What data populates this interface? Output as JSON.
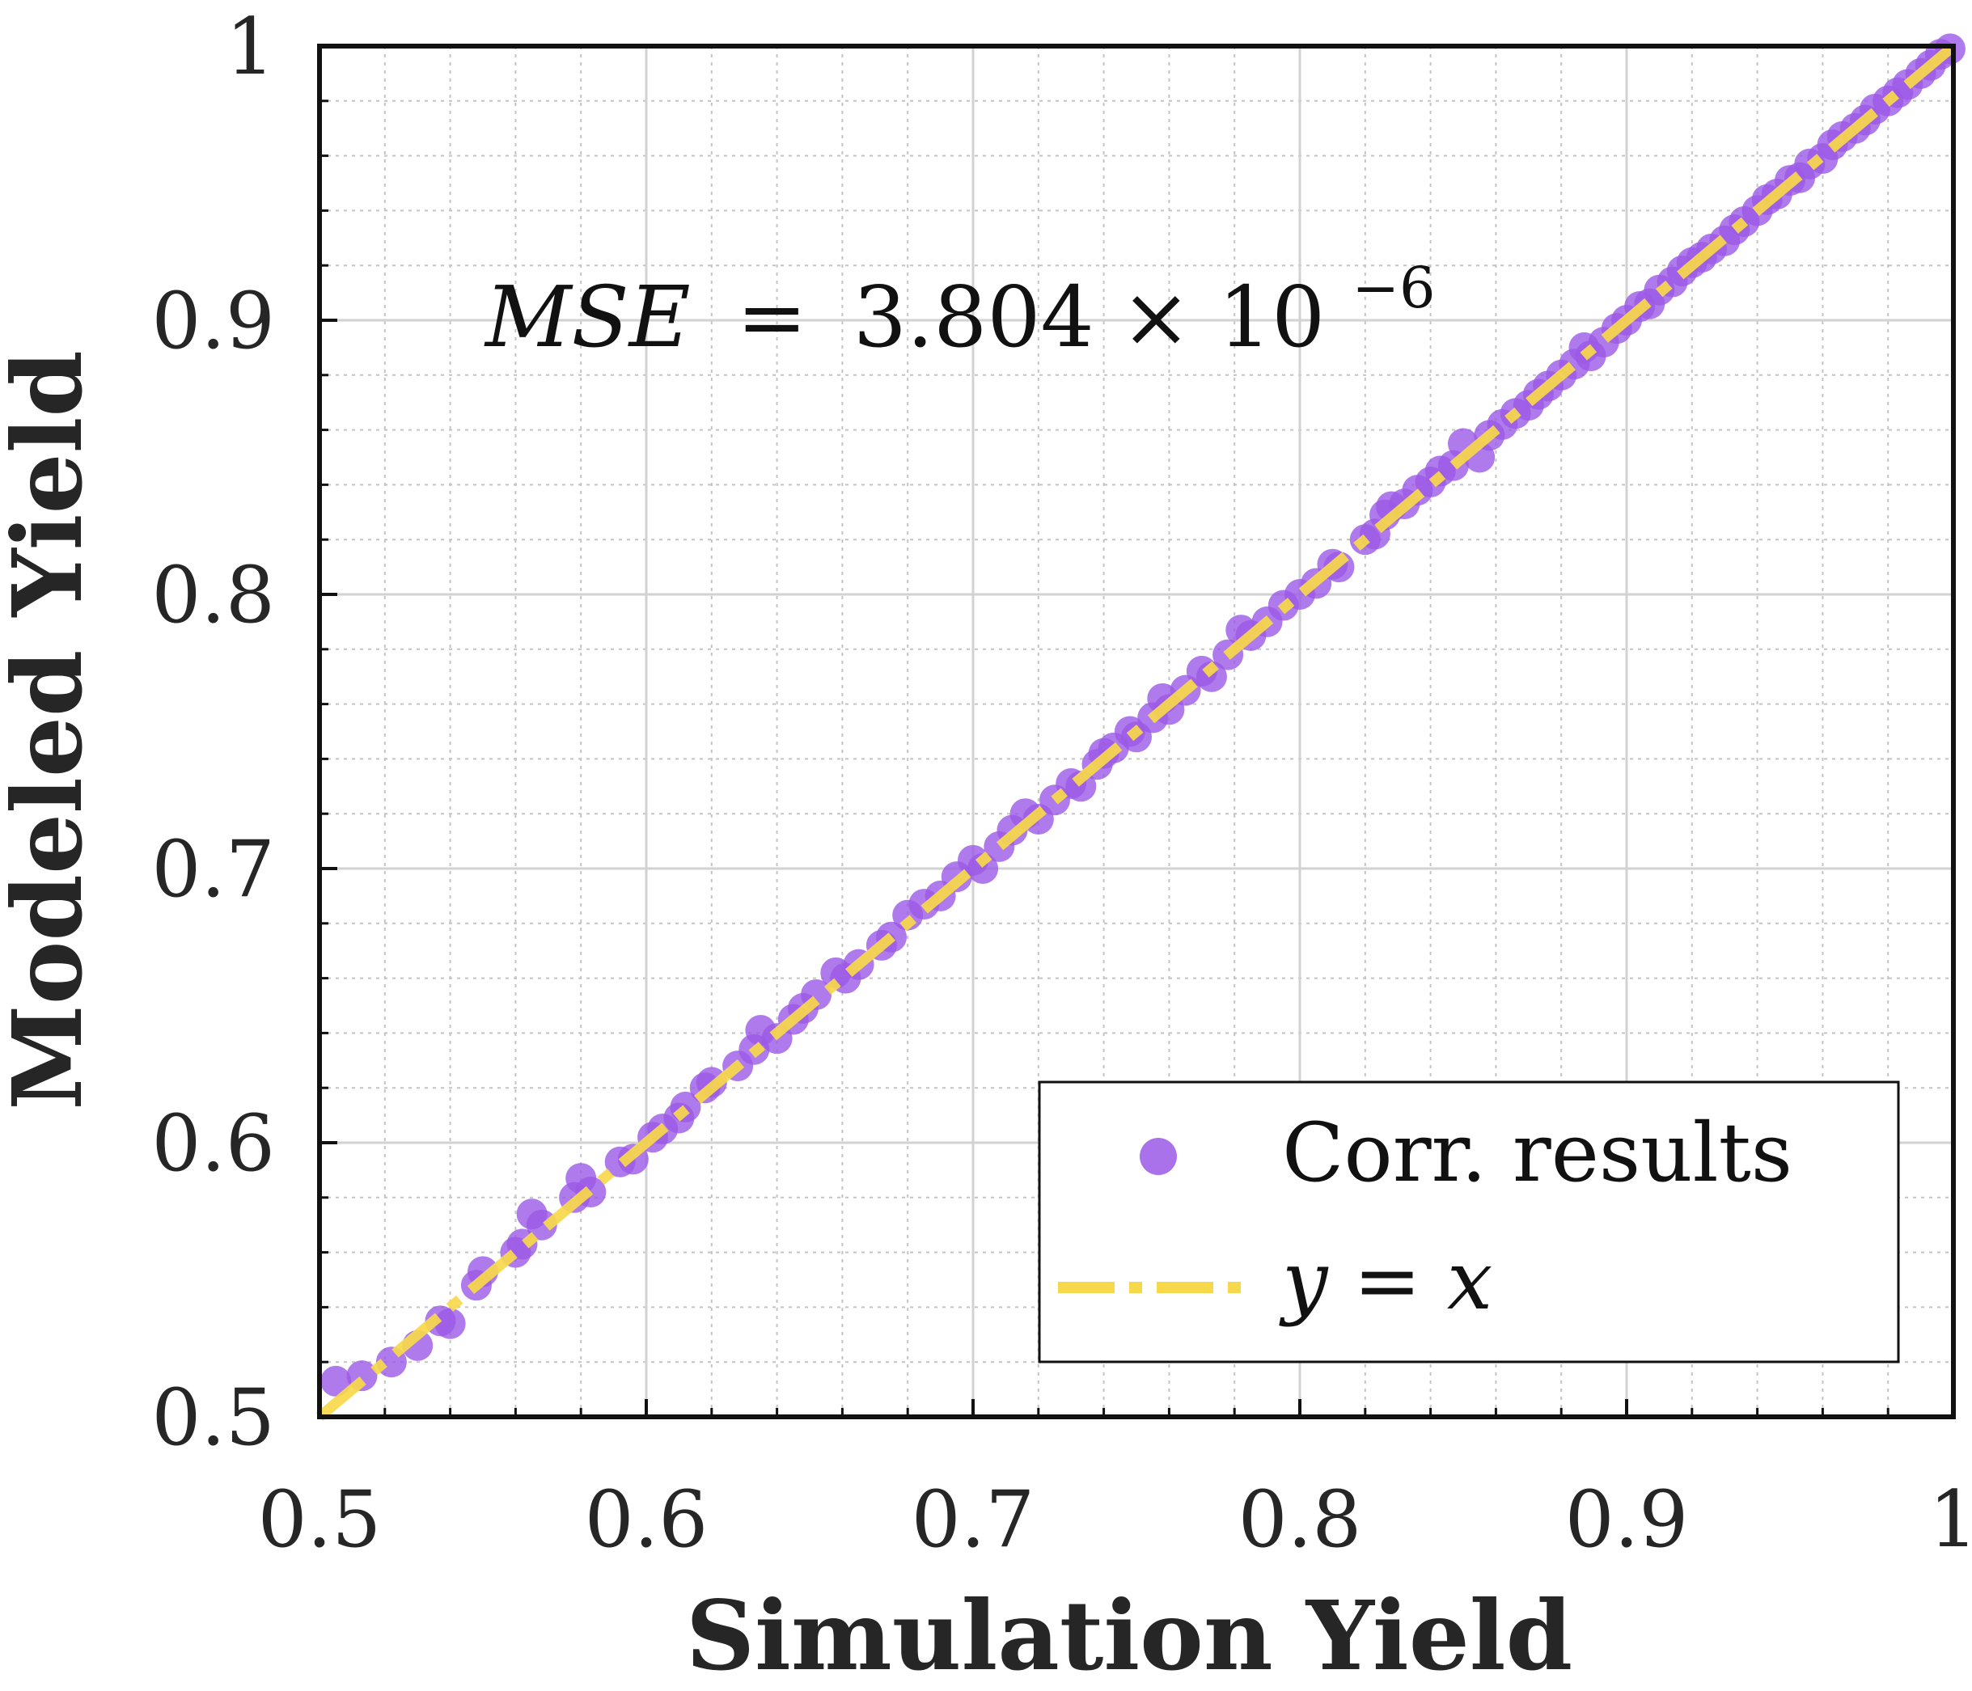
{
  "chart_data": {
    "type": "scatter",
    "title": "",
    "xlabel": "Simulation Yield",
    "ylabel": "Modeled Yield",
    "xlim": [
      0.5,
      1
    ],
    "ylim": [
      0.5,
      1
    ],
    "xticks": [
      "0.5",
      "0.6",
      "0.7",
      "0.8",
      "0.9",
      "1"
    ],
    "yticks": [
      "0.5",
      "0.6",
      "0.7",
      "0.8",
      "0.9",
      "1"
    ],
    "grid": true,
    "annotation": {
      "mse_lhs": "MSE",
      "mse_eq": "=",
      "mse_value": "3.804 × 10",
      "mse_exp": "−6"
    },
    "legend": {
      "position": "bottom-right",
      "entries": [
        {
          "label": "Corr. results",
          "marker": "circle",
          "color": "#9b59e6"
        },
        {
          "label_y": "y",
          "label_eq": " = ",
          "label_x": "x",
          "marker": "dash-dot",
          "color": "#f7d84a"
        }
      ]
    },
    "series": [
      {
        "name": "Corr. results",
        "kind": "scatter",
        "color": "#9b59e6",
        "points": [
          [
            0.505,
            0.513
          ],
          [
            0.513,
            0.515
          ],
          [
            0.522,
            0.52
          ],
          [
            0.53,
            0.526
          ],
          [
            0.537,
            0.535
          ],
          [
            0.54,
            0.534
          ],
          [
            0.548,
            0.548
          ],
          [
            0.55,
            0.553
          ],
          [
            0.56,
            0.56
          ],
          [
            0.562,
            0.563
          ],
          [
            0.565,
            0.574
          ],
          [
            0.568,
            0.57
          ],
          [
            0.578,
            0.58
          ],
          [
            0.58,
            0.587
          ],
          [
            0.583,
            0.582
          ],
          [
            0.592,
            0.593
          ],
          [
            0.596,
            0.594
          ],
          [
            0.602,
            0.602
          ],
          [
            0.605,
            0.605
          ],
          [
            0.61,
            0.609
          ],
          [
            0.612,
            0.613
          ],
          [
            0.618,
            0.62
          ],
          [
            0.62,
            0.622
          ],
          [
            0.628,
            0.628
          ],
          [
            0.633,
            0.634
          ],
          [
            0.635,
            0.641
          ],
          [
            0.64,
            0.638
          ],
          [
            0.645,
            0.645
          ],
          [
            0.648,
            0.649
          ],
          [
            0.652,
            0.654
          ],
          [
            0.658,
            0.662
          ],
          [
            0.661,
            0.66
          ],
          [
            0.665,
            0.665
          ],
          [
            0.672,
            0.672
          ],
          [
            0.675,
            0.675
          ],
          [
            0.68,
            0.683
          ],
          [
            0.685,
            0.687
          ],
          [
            0.69,
            0.69
          ],
          [
            0.695,
            0.697
          ],
          [
            0.7,
            0.703
          ],
          [
            0.703,
            0.7
          ],
          [
            0.708,
            0.708
          ],
          [
            0.712,
            0.714
          ],
          [
            0.716,
            0.72
          ],
          [
            0.72,
            0.718
          ],
          [
            0.725,
            0.725
          ],
          [
            0.73,
            0.731
          ],
          [
            0.733,
            0.73
          ],
          [
            0.738,
            0.738
          ],
          [
            0.74,
            0.742
          ],
          [
            0.743,
            0.744
          ],
          [
            0.748,
            0.75
          ],
          [
            0.75,
            0.748
          ],
          [
            0.755,
            0.755
          ],
          [
            0.758,
            0.762
          ],
          [
            0.76,
            0.758
          ],
          [
            0.765,
            0.765
          ],
          [
            0.77,
            0.772
          ],
          [
            0.773,
            0.77
          ],
          [
            0.778,
            0.778
          ],
          [
            0.782,
            0.787
          ],
          [
            0.785,
            0.785
          ],
          [
            0.79,
            0.79
          ],
          [
            0.795,
            0.796
          ],
          [
            0.8,
            0.8
          ],
          [
            0.805,
            0.804
          ],
          [
            0.81,
            0.811
          ],
          [
            0.812,
            0.81
          ],
          [
            0.82,
            0.82
          ],
          [
            0.823,
            0.822
          ],
          [
            0.826,
            0.829
          ],
          [
            0.828,
            0.832
          ],
          [
            0.832,
            0.833
          ],
          [
            0.836,
            0.838
          ],
          [
            0.84,
            0.841
          ],
          [
            0.843,
            0.845
          ],
          [
            0.847,
            0.847
          ],
          [
            0.85,
            0.855
          ],
          [
            0.855,
            0.85
          ],
          [
            0.858,
            0.858
          ],
          [
            0.862,
            0.862
          ],
          [
            0.866,
            0.866
          ],
          [
            0.87,
            0.869
          ],
          [
            0.873,
            0.873
          ],
          [
            0.876,
            0.876
          ],
          [
            0.88,
            0.88
          ],
          [
            0.884,
            0.884
          ],
          [
            0.887,
            0.89
          ],
          [
            0.889,
            0.887
          ],
          [
            0.893,
            0.892
          ],
          [
            0.897,
            0.897
          ],
          [
            0.9,
            0.9
          ],
          [
            0.904,
            0.905
          ],
          [
            0.907,
            0.906
          ],
          [
            0.91,
            0.911
          ],
          [
            0.914,
            0.914
          ],
          [
            0.917,
            0.918
          ],
          [
            0.92,
            0.921
          ],
          [
            0.923,
            0.923
          ],
          [
            0.926,
            0.926
          ],
          [
            0.93,
            0.929
          ],
          [
            0.933,
            0.933
          ],
          [
            0.936,
            0.936
          ],
          [
            0.94,
            0.94
          ],
          [
            0.943,
            0.944
          ],
          [
            0.946,
            0.946
          ],
          [
            0.95,
            0.951
          ],
          [
            0.953,
            0.952
          ],
          [
            0.956,
            0.957
          ],
          [
            0.96,
            0.959
          ],
          [
            0.963,
            0.964
          ],
          [
            0.966,
            0.967
          ],
          [
            0.97,
            0.97
          ],
          [
            0.973,
            0.973
          ],
          [
            0.976,
            0.977
          ],
          [
            0.98,
            0.98
          ],
          [
            0.983,
            0.983
          ],
          [
            0.986,
            0.986
          ],
          [
            0.99,
            0.99
          ],
          [
            0.993,
            0.993
          ],
          [
            0.996,
            0.997
          ],
          [
            0.999,
            0.999
          ]
        ]
      },
      {
        "name": "y = x",
        "kind": "line",
        "style": "dash-dot",
        "color": "#f7d84a",
        "x": [
          0.5,
          1
        ],
        "y": [
          0.5,
          1
        ]
      }
    ]
  }
}
